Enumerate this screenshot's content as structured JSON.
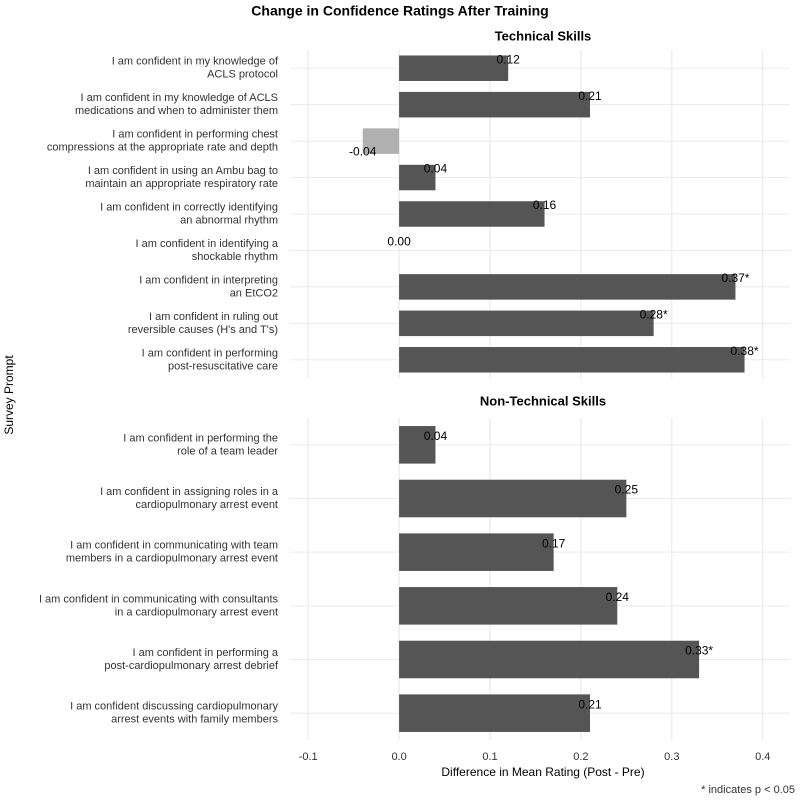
{
  "title": "Change in Confidence Ratings After Training",
  "xlabel": "Difference in Mean Rating (Post - Pre)",
  "ylabel": "Survey Prompt",
  "caption": "* indicates p < 0.05",
  "chart_data": [
    {
      "type": "bar",
      "orientation": "horizontal",
      "title": "Technical Skills",
      "categories": [
        "I am confident in my knowledge of\nACLS protocol",
        "I am confident in my knowledge of ACLS\nmedications and when to administer them",
        "I am confident in performing chest\ncompressions at the appropriate rate and depth",
        "I am confident in using an Ambu bag to\nmaintain an appropriate respiratory rate",
        "I am confident in correctly identifying\nan abnormal rhythm",
        "I am confident in identifying a\nshockable rhythm",
        "I am confident in interpreting\nan EtCO2",
        "I am confident in ruling out\nreversible causes (H's and T's)",
        "I am confident in performing\npost-resuscitative care"
      ],
      "values": [
        0.12,
        0.21,
        -0.04,
        0.04,
        0.16,
        0,
        0.37,
        0.28,
        0.38
      ],
      "value_labels": [
        "0.12",
        "0.21",
        "-0.04",
        "0.04",
        "0.16",
        "0.00",
        "0.37*",
        "0.28*",
        "0.38*"
      ],
      "color": "#555555",
      "negative_color": "#b0b0b0",
      "xlim": [
        -0.12,
        0.43
      ],
      "xticks": [
        -0.1,
        {
          "value": 0,
          "label": "0.0"
        },
        0.1,
        0.2,
        0.3,
        0.4
      ],
      "grid": true
    },
    {
      "type": "bar",
      "orientation": "horizontal",
      "title": "Non-Technical Skills",
      "categories": [
        "I am confident in performing the\nrole of a team leader",
        "I am confident in assigning roles in a\ncardiopulmonary arrest event",
        "I am confident in communicating with team\nmembers in a cardiopulmonary arrest event",
        "I am confident in communicating with consultants\nin a cardiopulmonary arrest event",
        "I am confident in performing a\npost-cardiopulmonary arrest debrief",
        "I am confident discussing cardiopulmonary\narrest events with family members"
      ],
      "values": [
        0.04,
        0.25,
        0.17,
        0.24,
        0.33,
        0.21
      ],
      "value_labels": [
        "0.04",
        "0.25",
        "0.17",
        "0.24",
        "0.33*",
        "0.21"
      ],
      "color": "#555555",
      "negative_color": "#b0b0b0",
      "xlim": [
        -0.12,
        0.43
      ],
      "xticks": [
        -0.1,
        {
          "value": 0,
          "label": "0.0"
        },
        0.1,
        0.2,
        0.3,
        0.4
      ],
      "grid": true
    }
  ]
}
